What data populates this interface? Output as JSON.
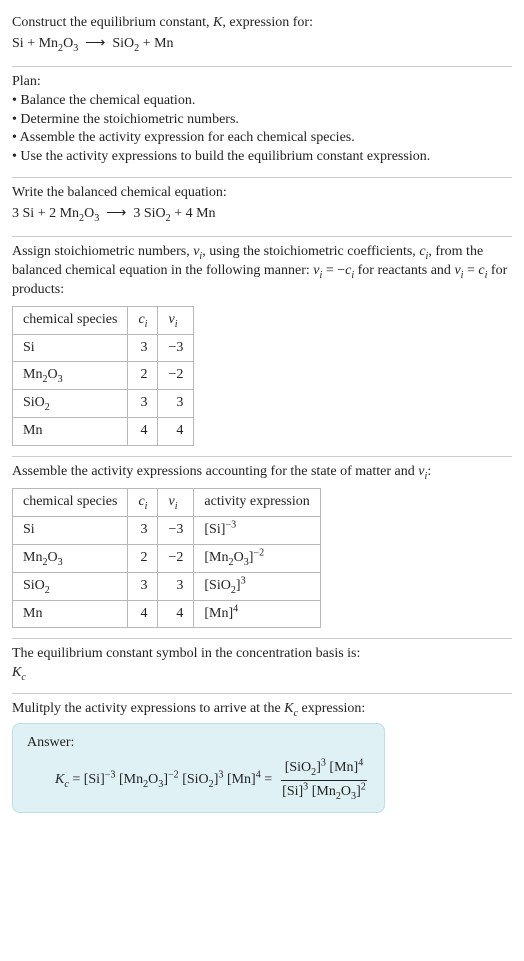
{
  "header": {
    "line1_a": "Construct the equilibrium constant, ",
    "line1_k": "K",
    "line1_b": ", expression for:",
    "eq_lhs_1": "Si",
    "eq_lhs_2": "Mn",
    "eq_lhs_2_sub": "2",
    "eq_lhs_3": "O",
    "eq_lhs_3_sub": "3",
    "eq_rhs_1": "SiO",
    "eq_rhs_1_sub": "2",
    "eq_rhs_2": "Mn",
    "arrow": "⟶",
    "plus": " + "
  },
  "plan": {
    "title": "Plan:",
    "items": [
      "• Balance the chemical equation.",
      "• Determine the stoichiometric numbers.",
      "• Assemble the activity expression for each chemical species.",
      "• Use the activity expressions to build the equilibrium constant expression."
    ]
  },
  "balanced": {
    "intro": "Write the balanced chemical equation:",
    "c1": "3 ",
    "s1": "Si",
    "c2": "2 ",
    "s2a": "Mn",
    "s2a_sub": "2",
    "s2b": "O",
    "s2b_sub": "3",
    "c3": "3 ",
    "s3": "SiO",
    "s3_sub": "2",
    "c4": "4 ",
    "s4": "Mn"
  },
  "assign": {
    "text_a": "Assign stoichiometric numbers, ",
    "nu": "ν",
    "nu_sub": "i",
    "text_b": ", using the stoichiometric coefficients, ",
    "c": "c",
    "c_sub": "i",
    "text_c": ", from the balanced chemical equation in the following manner: ",
    "rel1_a": "ν",
    "rel1_b": " = −",
    "rel1_c": "c",
    "text_d": " for reactants and ",
    "rel2_a": "ν",
    "rel2_b": " = ",
    "rel2_c": "c",
    "text_e": " for products:"
  },
  "table1": {
    "h1": "chemical species",
    "h2_a": "c",
    "h2_sub": "i",
    "h3_a": "ν",
    "h3_sub": "i",
    "rows": [
      {
        "sp_a": "Si",
        "sp_sub": "",
        "sp_b": "",
        "sp_sub2": "",
        "c": "3",
        "nu": "−3"
      },
      {
        "sp_a": "Mn",
        "sp_sub": "2",
        "sp_b": "O",
        "sp_sub2": "3",
        "c": "2",
        "nu": "−2"
      },
      {
        "sp_a": "SiO",
        "sp_sub": "2",
        "sp_b": "",
        "sp_sub2": "",
        "c": "3",
        "nu": "3"
      },
      {
        "sp_a": "Mn",
        "sp_sub": "",
        "sp_b": "",
        "sp_sub2": "",
        "c": "4",
        "nu": "4"
      }
    ]
  },
  "assemble": {
    "text_a": "Assemble the activity expressions accounting for the state of matter and ",
    "nu": "ν",
    "nu_sub": "i",
    "text_b": ":"
  },
  "table2": {
    "h1": "chemical species",
    "h2_a": "c",
    "h2_sub": "i",
    "h3_a": "ν",
    "h3_sub": "i",
    "h4": "activity expression",
    "rows": [
      {
        "sp_a": "Si",
        "sp_sub": "",
        "sp_b": "",
        "sp_sub2": "",
        "c": "3",
        "nu": "−3",
        "ae_a": "[Si]",
        "ae_sup": "−3"
      },
      {
        "sp_a": "Mn",
        "sp_sub": "2",
        "sp_b": "O",
        "sp_sub2": "3",
        "c": "2",
        "nu": "−2",
        "ae_a": "[Mn",
        "ae_mid_sub": "2",
        "ae_b": "O",
        "ae_mid_sub2": "3",
        "ae_c": "]",
        "ae_sup": "−2"
      },
      {
        "sp_a": "SiO",
        "sp_sub": "2",
        "sp_b": "",
        "sp_sub2": "",
        "c": "3",
        "nu": "3",
        "ae_a": "[SiO",
        "ae_mid_sub": "2",
        "ae_c": "]",
        "ae_sup": "3"
      },
      {
        "sp_a": "Mn",
        "sp_sub": "",
        "sp_b": "",
        "sp_sub2": "",
        "c": "4",
        "nu": "4",
        "ae_a": "[Mn]",
        "ae_sup": "4"
      }
    ]
  },
  "symbol": {
    "text": "The equilibrium constant symbol in the concentration basis is:",
    "K": "K",
    "K_sub": "c"
  },
  "multiply": {
    "text_a": "Mulitply the activity expressions to arrive at the ",
    "K": "K",
    "K_sub": "c",
    "text_b": " expression:"
  },
  "answer": {
    "label": "Answer:",
    "K": "K",
    "K_sub": "c",
    "eq": " = ",
    "t1": "[Si]",
    "t1_sup": "−3",
    "t2a": " [Mn",
    "t2_sub1": "2",
    "t2b": "O",
    "t2_sub2": "3",
    "t2c": "]",
    "t2_sup": "−2",
    "t3a": " [SiO",
    "t3_sub": "2",
    "t3b": "]",
    "t3_sup": "3",
    "t4": " [Mn]",
    "t4_sup": "4",
    "eq2": " = ",
    "num_a": "[SiO",
    "num_sub": "2",
    "num_b": "]",
    "num_sup1": "3",
    "num_c": " [Mn]",
    "num_sup2": "4",
    "den_a": "[Si]",
    "den_sup1": "3",
    "den_b": " [Mn",
    "den_sub1": "2",
    "den_c": "O",
    "den_sub2": "3",
    "den_d": "]",
    "den_sup2": "2"
  }
}
